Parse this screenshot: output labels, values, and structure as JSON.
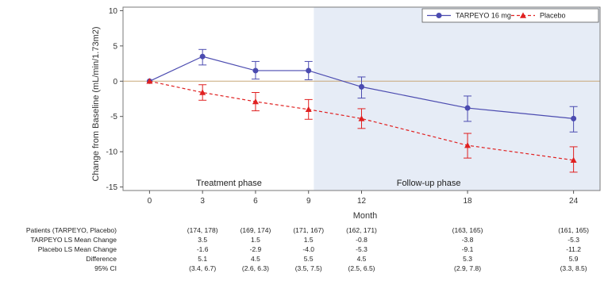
{
  "chart_data": {
    "type": "line",
    "xlabel": "Month",
    "ylabel": "Change from Baseline (mL/min/1.73m2)",
    "x_ticks": [
      0,
      3,
      6,
      9,
      12,
      18,
      24
    ],
    "y_ticks": [
      10,
      5,
      0,
      -5,
      -10,
      -15
    ],
    "xlim": [
      -1.5,
      25.5
    ],
    "ylim": [
      -15.5,
      10.5
    ],
    "reference_line_y": 0,
    "phases": [
      {
        "label": "Treatment phase",
        "x_start": -1.5,
        "x_end": 9.3,
        "shaded": false
      },
      {
        "label": "Follow-up phase",
        "x_start": 9.3,
        "x_end": 25.5,
        "shaded": true
      }
    ],
    "series": [
      {
        "name": "TARPEYO 16 mg",
        "color": "#4b4bb0",
        "marker": "circle",
        "line": "solid",
        "x": [
          0,
          3,
          6,
          9,
          12,
          18,
          24
        ],
        "y": [
          0,
          3.5,
          1.5,
          1.5,
          -0.8,
          -3.8,
          -5.3
        ],
        "ci_low": [
          0,
          2.3,
          0.3,
          0.2,
          -2.4,
          -5.7,
          -7.2
        ],
        "ci_high": [
          0,
          4.5,
          2.8,
          2.8,
          0.6,
          -2.1,
          -3.6
        ]
      },
      {
        "name": "Placebo",
        "color": "#e02020",
        "marker": "triangle",
        "line": "dashed",
        "x": [
          0,
          3,
          6,
          9,
          12,
          18,
          24
        ],
        "y": [
          0,
          -1.6,
          -2.9,
          -4.0,
          -5.3,
          -9.1,
          -11.2
        ],
        "ci_low": [
          0,
          -2.7,
          -4.2,
          -5.4,
          -6.7,
          -10.9,
          -12.9
        ],
        "ci_high": [
          0,
          -0.5,
          -1.6,
          -2.6,
          -3.9,
          -7.4,
          -9.3
        ]
      }
    ],
    "legend_position": "top-right",
    "table": {
      "columns_x": [
        3,
        6,
        9,
        12,
        18,
        24
      ],
      "rows": [
        {
          "label": "Patients (TARPEYO, Placebo)",
          "values": [
            "(174, 178)",
            "(169, 174)",
            "(171, 167)",
            "(162, 171)",
            "(163, 165)",
            "(161, 165)"
          ]
        },
        {
          "label": "TARPEYO LS Mean Change",
          "values": [
            "3.5",
            "1.5",
            "1.5",
            "-0.8",
            "-3.8",
            "-5.3"
          ]
        },
        {
          "label": "Placebo LS Mean Change",
          "values": [
            "-1.6",
            "-2.9",
            "-4.0",
            "-5.3",
            "-9.1",
            "-11.2"
          ]
        },
        {
          "label": "Difference",
          "values": [
            "5.1",
            "4.5",
            "5.5",
            "4.5",
            "5.3",
            "5.9"
          ]
        },
        {
          "label": "95% CI",
          "values": [
            "(3.4, 6.7)",
            "(2.6, 6.3)",
            "(3.5, 7.5)",
            "(2.5, 6.5)",
            "(2.9, 7.8)",
            "(3.3, 8.5)"
          ]
        }
      ]
    }
  }
}
